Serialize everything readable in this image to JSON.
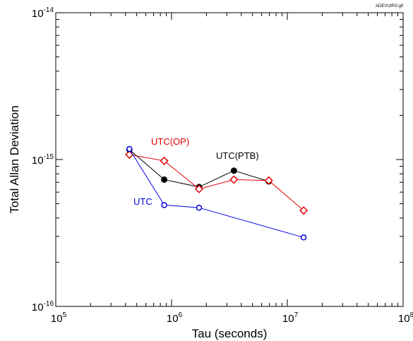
{
  "file_label": "ADEVUtPO.gif",
  "chart_data": {
    "type": "scatter",
    "title": "",
    "xlabel": "Tau (seconds)",
    "ylabel": "Total Allan Deviation",
    "xscale": "log",
    "yscale": "log",
    "xlim": [
      100000,
      100000000
    ],
    "ylim": [
      1e-16,
      1e-14
    ],
    "grid": false,
    "x_tick_labels": [
      {
        "base": "10",
        "exp": "5"
      },
      {
        "base": "10",
        "exp": "6"
      },
      {
        "base": "10",
        "exp": "7"
      },
      {
        "base": "10",
        "exp": "8"
      }
    ],
    "y_tick_labels": [
      {
        "base": "10",
        "exp": "-16"
      },
      {
        "base": "10",
        "exp": "-15"
      },
      {
        "base": "10",
        "exp": "-14"
      }
    ],
    "series": [
      {
        "name": "UTC(PTB)",
        "color": "#000000",
        "marker": "filled-circle",
        "x": [
          432000,
          864000,
          1728000,
          3456000,
          6912000
        ],
        "y": [
          1.17e-15,
          7.3e-16,
          6.5e-16,
          8.4e-16,
          7.1e-16
        ]
      },
      {
        "name": "UTC(OP)",
        "color": "#e00000",
        "marker": "open-diamond",
        "x": [
          432000,
          864000,
          1728000,
          3456000,
          6912000,
          13824000
        ],
        "y": [
          1.08e-15,
          9.8e-16,
          6.3e-16,
          7.3e-16,
          7.2e-16,
          4.5e-16
        ]
      },
      {
        "name": "UTC",
        "color": "#0000e0",
        "marker": "open-circle",
        "x": [
          432000,
          864000,
          1728000,
          13824000
        ],
        "y": [
          1.18e-15,
          4.9e-16,
          4.7e-16,
          2.95e-16
        ]
      }
    ]
  }
}
